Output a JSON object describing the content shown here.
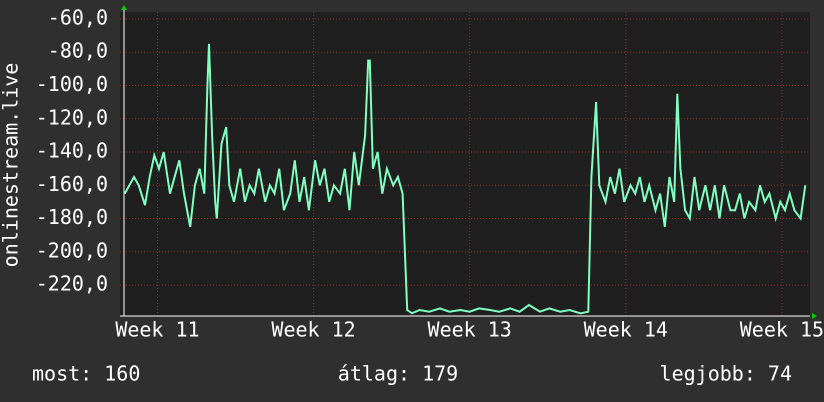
{
  "chart_data": {
    "type": "line",
    "y_label": "onlinestream.live",
    "x": [
      10.79,
      10.82,
      10.85,
      10.88,
      10.92,
      10.95,
      10.98,
      11.01,
      11.04,
      11.08,
      11.11,
      11.14,
      11.17,
      11.21,
      11.24,
      11.27,
      11.3,
      11.32,
      11.33,
      11.35,
      11.37,
      11.38,
      11.41,
      11.44,
      11.46,
      11.49,
      11.53,
      11.56,
      11.59,
      11.62,
      11.65,
      11.69,
      11.72,
      11.75,
      11.78,
      11.81,
      11.85,
      11.88,
      11.91,
      11.94,
      11.97,
      12.01,
      12.04,
      12.07,
      12.1,
      12.13,
      12.17,
      12.2,
      12.23,
      12.26,
      12.29,
      12.33,
      12.35,
      12.36,
      12.38,
      12.41,
      12.44,
      12.47,
      12.51,
      12.54,
      12.57,
      12.6,
      12.63,
      12.68,
      12.74,
      12.81,
      12.87,
      12.94,
      13.0,
      13.06,
      13.13,
      13.19,
      13.26,
      13.32,
      13.38,
      13.45,
      13.51,
      13.58,
      13.64,
      13.71,
      13.76,
      13.78,
      13.81,
      13.83,
      13.87,
      13.9,
      13.93,
      13.96,
      13.99,
      14.03,
      14.06,
      14.09,
      14.12,
      14.15,
      14.19,
      14.22,
      14.25,
      14.28,
      14.31,
      14.33,
      14.35,
      14.38,
      14.41,
      14.44,
      14.47,
      14.51,
      14.54,
      14.57,
      14.6,
      14.63,
      14.67,
      14.7,
      14.73,
      14.76,
      14.79,
      14.83,
      14.86,
      14.89,
      14.92,
      14.96,
      14.99,
      15.02,
      15.05,
      15.08,
      15.12,
      15.15
    ],
    "series": [
      {
        "name": "onlinestream.live",
        "color": "#80ffc0",
        "values": [
          -165,
          -160,
          -155,
          -160,
          -172,
          -155,
          -142,
          -150,
          -140,
          -165,
          -155,
          -145,
          -165,
          -185,
          -160,
          -150,
          -165,
          -100,
          -75,
          -130,
          -170,
          -180,
          -135,
          -125,
          -160,
          -170,
          -150,
          -170,
          -160,
          -165,
          -150,
          -170,
          -160,
          -165,
          -150,
          -175,
          -165,
          -145,
          -170,
          -155,
          -175,
          -145,
          -160,
          -150,
          -170,
          -160,
          -165,
          -150,
          -175,
          -140,
          -160,
          -130,
          -85,
          -85,
          -150,
          -140,
          -165,
          -150,
          -160,
          -155,
          -165,
          -235,
          -237,
          -235,
          -236,
          -234,
          -236,
          -235,
          -236,
          -234,
          -235,
          -236,
          -234,
          -236,
          -232,
          -236,
          -234,
          -236,
          -235,
          -237,
          -236,
          -155,
          -110,
          -160,
          -170,
          -155,
          -165,
          -150,
          -170,
          -160,
          -165,
          -155,
          -170,
          -160,
          -175,
          -165,
          -185,
          -155,
          -170,
          -105,
          -150,
          -175,
          -180,
          -155,
          -175,
          -160,
          -175,
          -160,
          -180,
          -160,
          -175,
          -175,
          -165,
          -180,
          -170,
          -175,
          -160,
          -170,
          -165,
          -180,
          -170,
          -175,
          -165,
          -175,
          -180,
          -160
        ]
      }
    ],
    "xlim": [
      10.76,
      15.18
    ],
    "ylim": [
      -238.6,
      -55.8
    ],
    "xticks": [
      {
        "value": 11,
        "label": "Week 11"
      },
      {
        "value": 12,
        "label": "Week 12"
      },
      {
        "value": 13,
        "label": "Week 13"
      },
      {
        "value": 14,
        "label": "Week 14"
      },
      {
        "value": 15,
        "label": "Week 15"
      }
    ],
    "yticks": [
      {
        "value": -60,
        "label": "-60,0"
      },
      {
        "value": -80,
        "label": "-80,0"
      },
      {
        "value": -100,
        "label": "-100,0"
      },
      {
        "value": -120,
        "label": "-120,0"
      },
      {
        "value": -140,
        "label": "-140,0"
      },
      {
        "value": -160,
        "label": "-160,0"
      },
      {
        "value": -180,
        "label": "-180,0"
      },
      {
        "value": -200,
        "label": "-200,0"
      },
      {
        "value": -220,
        "label": "-220,0"
      }
    ],
    "grid": true,
    "footer": [
      "most: 160",
      "átlag: 179",
      "legjobb: 74"
    ]
  }
}
